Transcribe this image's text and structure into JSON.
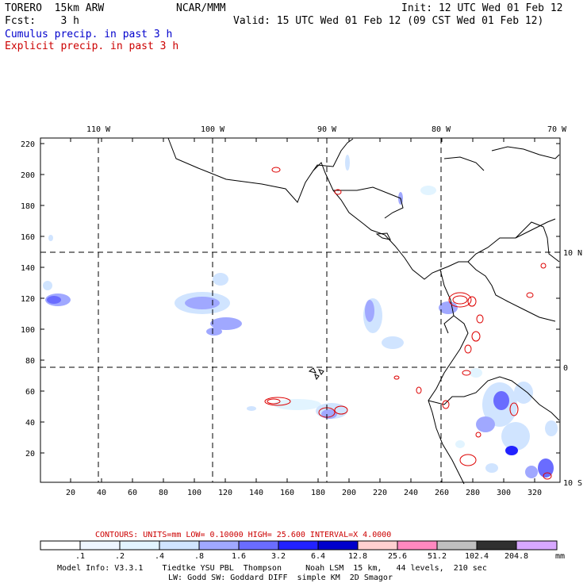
{
  "header": {
    "model": "TORERO  15km ARW",
    "org": "NCAR/MMM",
    "init": "Init: 12 UTC Wed 01 Feb 12",
    "fcst": "Fcst:    3 h",
    "valid": "Valid: 15 UTC Wed 01 Feb 12 (09 CST Wed 01 Feb 12)",
    "cumulus": "Cumulus precip. in past 3 h",
    "explicit": "Explicit precip. in past 3 h"
  },
  "map": {
    "lon_labels": [
      "110 W",
      "100 W",
      "90 W",
      "80 W",
      "70 W"
    ],
    "lat_labels": [
      "10 N",
      "0",
      "10 S"
    ],
    "y_ticks": [
      "220",
      "200",
      "180",
      "160",
      "140",
      "120",
      "100",
      "80",
      "60",
      "40",
      "20"
    ],
    "x_ticks": [
      "20",
      "40",
      "60",
      "80",
      "100",
      "120",
      "140",
      "160",
      "180",
      "200",
      "220",
      "240",
      "260",
      "280",
      "300",
      "320"
    ]
  },
  "contours": {
    "text": "CONTOURS:  UNITS=mm  LOW= 0.10000     HIGH=  25.600     INTERVAL=X  4.0000"
  },
  "colorbar": {
    "labels": [
      ".1",
      ".2",
      ".4",
      ".8",
      "1.6",
      "3.2",
      "6.4",
      "12.8",
      "25.6",
      "51.2",
      "102.4",
      "204.8"
    ],
    "units": "mm",
    "colors": [
      "#ffffff",
      "#ffffff",
      "#eef5ff",
      "#e2f4ff",
      "#d0e4ff",
      "#a0a8ff",
      "#6a6cff",
      "#2222ff",
      "#0000cc",
      "#ffd0d0",
      "#ff88c0",
      "#c0c0c0",
      "#303030",
      "#d8a8ff"
    ]
  },
  "footer": {
    "line1": "Model Info: V3.3.1    Tiedtke YSU PBL  Thompson     Noah LSM  15 km,   44 levels,  210 sec",
    "line2": "LW: Godd SW: Goddard DIFF  simple KM  2D Smagor"
  }
}
